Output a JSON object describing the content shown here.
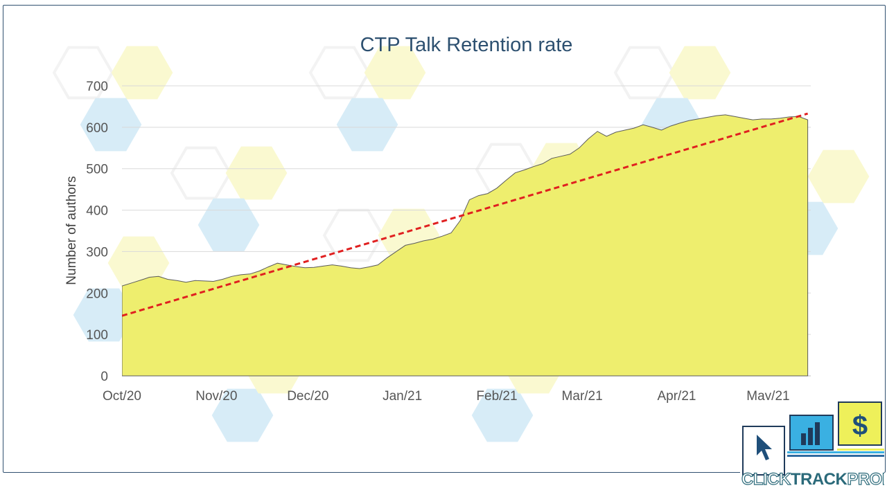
{
  "chart_data": {
    "type": "area",
    "title": "CTP Talk Retention rate",
    "ylabel": "Number of authors",
    "xlabel": "",
    "ylim": [
      0,
      700
    ],
    "y_ticks": [
      0,
      100,
      200,
      300,
      400,
      500,
      600,
      700
    ],
    "x_ticks": [
      "Oct/20",
      "Nov/20",
      "Dec/20",
      "Jan/21",
      "Feb/21",
      "Mar/21",
      "Apr/21",
      "May/21"
    ],
    "grid": "horizontal",
    "colors": {
      "area": "#eeee6e",
      "area_stroke": "#5a5a5a",
      "trend": "#e02020",
      "grid": "#d9d9d9"
    },
    "series": [
      {
        "type": "area",
        "x": [
          "2020-10-01",
          "2020-10-05",
          "2020-10-08",
          "2020-10-10",
          "2020-10-13",
          "2020-10-16",
          "2020-10-19",
          "2020-10-22",
          "2020-10-25",
          "2020-10-28",
          "2020-10-31",
          "2020-11-03",
          "2020-11-06",
          "2020-11-09",
          "2020-11-12",
          "2020-11-15",
          "2020-11-18",
          "2020-11-21",
          "2020-11-24",
          "2020-11-27",
          "2020-11-30",
          "2020-12-03",
          "2020-12-06",
          "2020-12-09",
          "2020-12-12",
          "2020-12-15",
          "2020-12-18",
          "2020-12-21",
          "2020-12-24",
          "2020-12-27",
          "2020-12-30",
          "2021-01-02",
          "2021-01-05",
          "2021-01-08",
          "2021-01-11",
          "2021-01-14",
          "2021-01-17",
          "2021-01-20",
          "2021-01-23",
          "2021-01-26",
          "2021-01-29",
          "2021-02-01",
          "2021-02-04",
          "2021-02-07",
          "2021-02-10",
          "2021-02-13",
          "2021-02-16",
          "2021-02-19",
          "2021-02-22",
          "2021-02-25",
          "2021-02-28",
          "2021-03-03",
          "2021-03-06",
          "2021-03-09",
          "2021-03-12",
          "2021-03-15",
          "2021-03-18",
          "2021-03-21",
          "2021-03-24",
          "2021-03-27",
          "2021-03-30",
          "2021-04-02",
          "2021-04-05",
          "2021-04-08",
          "2021-04-11",
          "2021-04-14",
          "2021-04-17",
          "2021-04-20",
          "2021-04-23",
          "2021-04-26",
          "2021-04-29",
          "2021-05-02",
          "2021-05-05",
          "2021-05-08",
          "2021-05-11",
          "2021-05-14"
        ],
        "values": [
          217,
          226,
          233,
          238,
          240,
          233,
          230,
          226,
          230,
          229,
          228,
          233,
          240,
          244,
          246,
          253,
          263,
          272,
          268,
          264,
          261,
          262,
          265,
          268,
          265,
          261,
          259,
          263,
          268,
          285,
          300,
          315,
          320,
          326,
          330,
          337,
          345,
          375,
          425,
          435,
          440,
          453,
          472,
          490,
          497,
          505,
          512,
          525,
          530,
          535,
          550,
          572,
          590,
          578,
          588,
          593,
          598,
          606,
          600,
          593,
          603,
          610,
          616,
          620,
          624,
          628,
          630,
          626,
          622,
          618,
          620,
          620,
          622,
          625,
          626,
          618
        ]
      },
      {
        "type": "trendline",
        "name": "",
        "x": [
          "2020-10-01",
          "2021-05-14"
        ],
        "values": [
          145,
          633
        ]
      }
    ]
  },
  "logo": {
    "text_part1": "CLICK",
    "text_part2": "TRACK",
    "text_part3": "PROFIT",
    "dollar_symbol": "$",
    "colors": {
      "blue": "#3ab0e2",
      "yellow": "#eef05a",
      "navy": "#1f3a5a",
      "teal": "#2b6a7a"
    }
  }
}
